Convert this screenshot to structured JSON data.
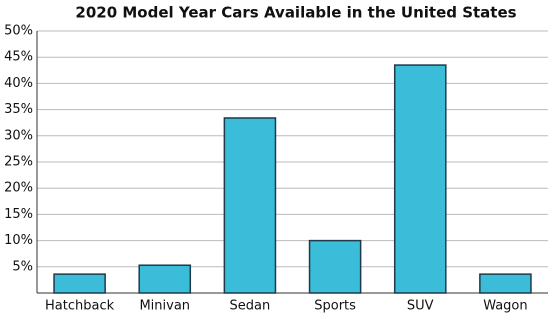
{
  "chart_data": {
    "type": "bar",
    "title": "2020 Model Year Cars Available in the United States",
    "categories": [
      "Hatchback",
      "Minivan",
      "Sedan",
      "Sports",
      "SUV",
      "Wagon"
    ],
    "values": [
      3.6,
      5.3,
      33.4,
      10,
      43.5,
      3.6
    ],
    "color": "#3bbcd9",
    "edge_color": "#1d3b4a",
    "ylim": [
      0,
      50
    ],
    "yticks": [
      {
        "value": 5,
        "label": "5%"
      },
      {
        "value": 10,
        "label": "10%"
      },
      {
        "value": 15,
        "label": "15%"
      },
      {
        "value": 20,
        "label": "20%"
      },
      {
        "value": 25,
        "label": "25%"
      },
      {
        "value": 30,
        "label": "30%"
      },
      {
        "value": 35,
        "label": "35%"
      },
      {
        "value": 40,
        "label": "40%"
      },
      {
        "value": 45,
        "label": "45%"
      },
      {
        "value": 50,
        "label": "50%"
      }
    ],
    "grid": true
  }
}
